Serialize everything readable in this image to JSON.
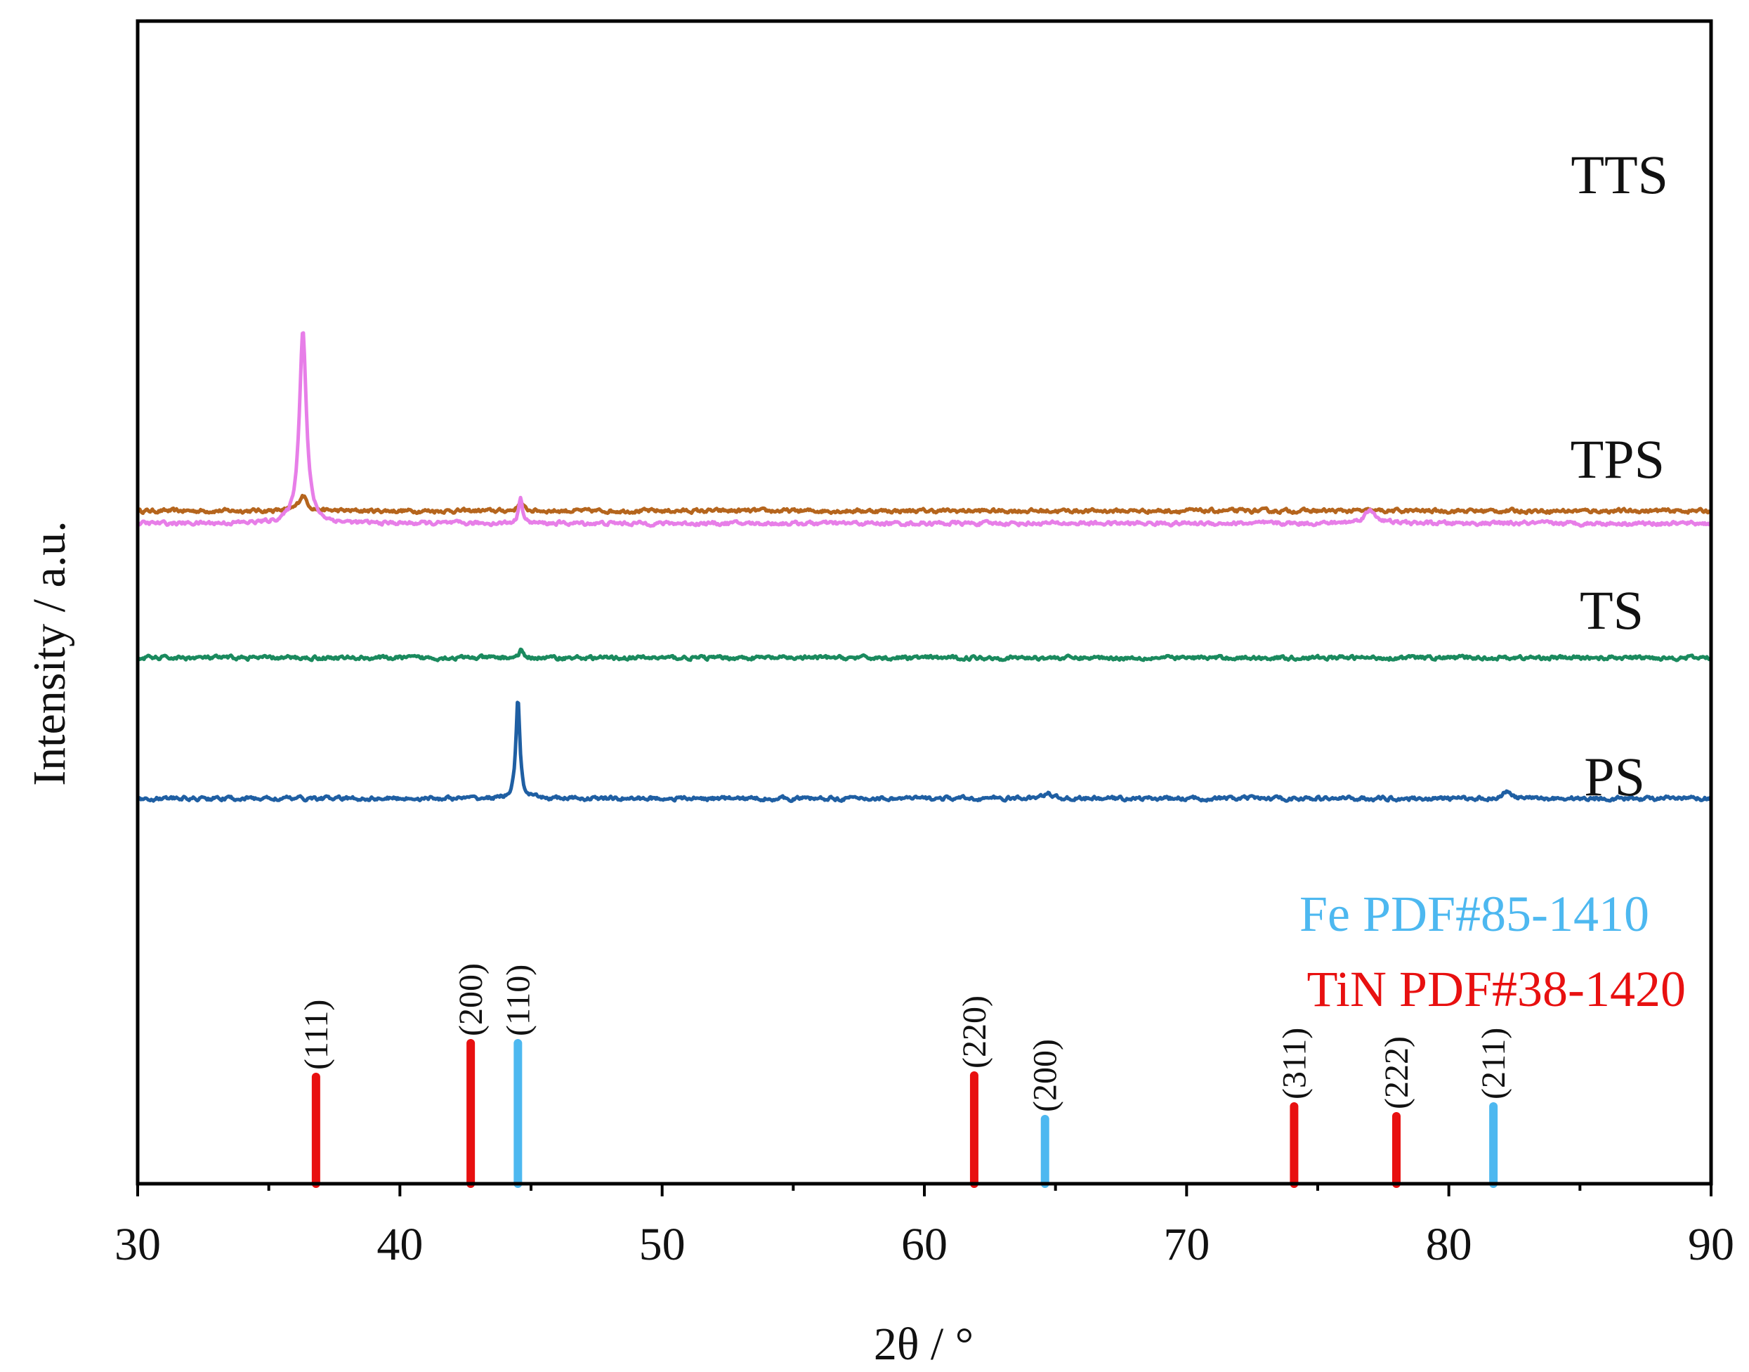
{
  "chart_data": {
    "type": "line",
    "title": "",
    "xlabel": "2θ / °",
    "ylabel": "Intensity / a.u.",
    "xlim": [
      30,
      90
    ],
    "x_ticks": [
      "30",
      "40",
      "50",
      "60",
      "70",
      "80",
      "90"
    ],
    "y_ticks": [],
    "grid": false,
    "series": [
      {
        "name": "TTS",
        "color": "#b5651d",
        "baseline": 0.2,
        "peaks": [
          {
            "x": 36.3,
            "height": 0.25,
            "width": 0.35
          },
          {
            "x": 44.6,
            "height": 0.15,
            "width": 0.2
          }
        ]
      },
      {
        "name": "TPS",
        "color": "#e77ee8",
        "baseline": 0,
        "peaks": [
          {
            "x": 36.3,
            "height": 3.1,
            "width": 0.3
          },
          {
            "x": 44.6,
            "height": 0.45,
            "width": 0.15
          },
          {
            "x": 77.0,
            "height": 0.2,
            "width": 0.55
          }
        ]
      },
      {
        "name": "TS",
        "color": "#1a8a5e",
        "baseline": -2.15,
        "peaks": [
          {
            "x": 44.6,
            "height": 0.12,
            "width": 0.15
          }
        ]
      },
      {
        "name": "PS",
        "color": "#1f5fa3",
        "baseline": -4.4,
        "peaks": [
          {
            "x": 44.5,
            "height": 1.6,
            "width": 0.17
          },
          {
            "x": 64.7,
            "height": 0.1,
            "width": 0.3
          },
          {
            "x": 82.2,
            "height": 0.12,
            "width": 0.3
          }
        ]
      }
    ],
    "references": [
      {
        "name": "Fe PDF#85-1410",
        "color": "#4db8f0",
        "lines": [
          {
            "x": 44.5,
            "hkl": "(110)",
            "intensity": 1.0
          },
          {
            "x": 64.6,
            "hkl": "(200)",
            "intensity": 0.46
          },
          {
            "x": 81.7,
            "hkl": "(211)",
            "intensity": 0.55
          }
        ]
      },
      {
        "name": "TiN PDF#38-1420",
        "color": "#e81010",
        "lines": [
          {
            "x": 36.8,
            "hkl": "(111)",
            "intensity": 0.76
          },
          {
            "x": 42.7,
            "hkl": "(200)",
            "intensity": 1.0
          },
          {
            "x": 61.9,
            "hkl": "(220)",
            "intensity": 0.77
          },
          {
            "x": 74.1,
            "hkl": "(311)",
            "intensity": 0.55
          },
          {
            "x": 78.0,
            "hkl": "(222)",
            "intensity": 0.48
          }
        ]
      }
    ]
  }
}
